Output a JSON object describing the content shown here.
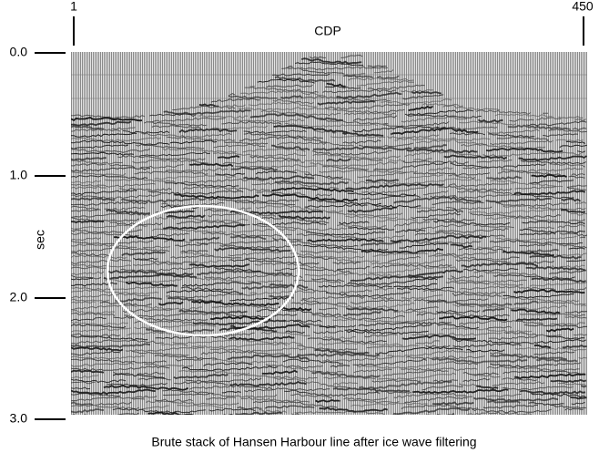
{
  "figure": {
    "x_axis": {
      "label": "CDP",
      "ticks": [
        "1",
        "450"
      ]
    },
    "y_axis": {
      "label": "sec",
      "ticks": [
        "0.0",
        "1.0",
        "2.0",
        "3.0"
      ]
    },
    "caption": "Brute stack of Hansen Harbour line after ice wave filtering"
  }
}
